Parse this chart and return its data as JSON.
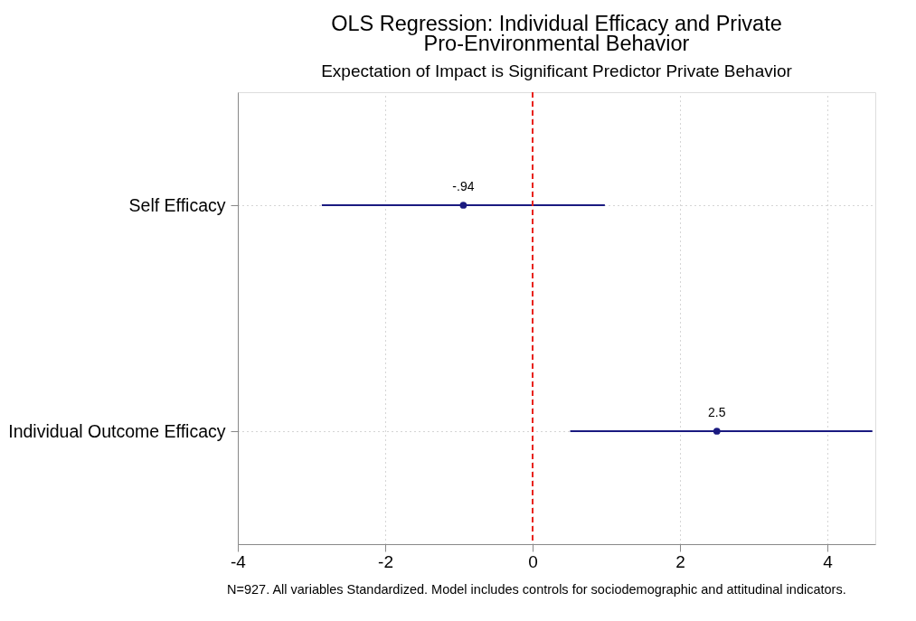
{
  "chart_data": {
    "type": "scatter",
    "orientation": "horizontal",
    "title": "OLS Regression: Individual Efficacy and Private Pro-Environmental Behavior",
    "subtitle": "Expectation of Impact is Significant Predictor Private Behavior",
    "categories": [
      "Self Efficacy",
      "Individual Outcome Efficacy"
    ],
    "series": [
      {
        "color": "#1a1a80",
        "values": [
          -0.94,
          2.5
        ],
        "errors": [
          [
            -2.86,
            0.98
          ],
          [
            0.51,
            4.61
          ]
        ],
        "value_labels": [
          "-.94",
          "2.5"
        ]
      }
    ],
    "xlim": [
      -4,
      4.65
    ],
    "xticks": [
      -4,
      -2,
      0,
      2,
      4
    ],
    "grid": true,
    "marker": "circle",
    "ref_lines": [
      {
        "axis": "x",
        "value": 0,
        "color": "#e8221b",
        "line_style": "dashed"
      }
    ],
    "annotations": [
      "N=927. All variables Standardized. Model includes controls for sociodemographic and attitudinal indicators."
    ]
  }
}
